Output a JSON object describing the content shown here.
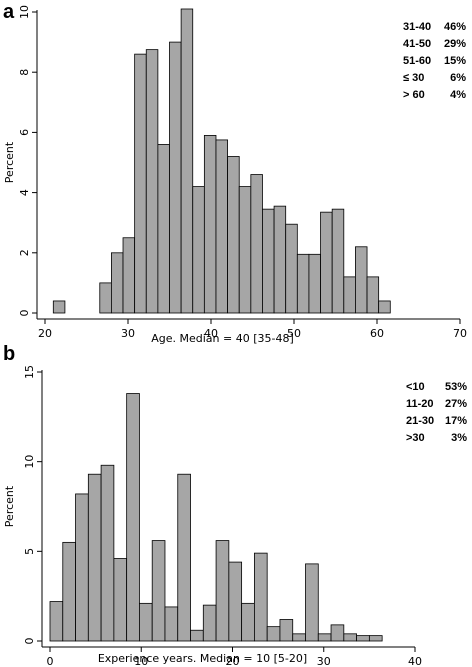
{
  "chart_data": [
    {
      "panel": "a",
      "type": "bar",
      "xlabel": "Age. Median = 40 [35-48]",
      "ylabel": "Percent",
      "xlim": [
        20,
        70
      ],
      "ylim": [
        0,
        10
      ],
      "xticks": [
        20,
        30,
        40,
        50,
        60,
        70
      ],
      "yticks": [
        0,
        2,
        4,
        6,
        8,
        10
      ],
      "bin_width": 1.4,
      "bins": [
        {
          "x": 21.0,
          "y": 0.4
        },
        {
          "x": 26.6,
          "y": 1.0
        },
        {
          "x": 28.0,
          "y": 2.0
        },
        {
          "x": 29.4,
          "y": 2.5
        },
        {
          "x": 30.8,
          "y": 8.6
        },
        {
          "x": 32.2,
          "y": 8.75
        },
        {
          "x": 33.6,
          "y": 5.6
        },
        {
          "x": 35.0,
          "y": 9.0
        },
        {
          "x": 36.4,
          "y": 10.1
        },
        {
          "x": 37.8,
          "y": 4.2
        },
        {
          "x": 39.2,
          "y": 5.9
        },
        {
          "x": 40.6,
          "y": 5.75
        },
        {
          "x": 42.0,
          "y": 5.2
        },
        {
          "x": 43.4,
          "y": 4.2
        },
        {
          "x": 44.8,
          "y": 4.6
        },
        {
          "x": 46.2,
          "y": 3.45
        },
        {
          "x": 47.6,
          "y": 3.55
        },
        {
          "x": 49.0,
          "y": 2.95
        },
        {
          "x": 50.4,
          "y": 1.95
        },
        {
          "x": 51.8,
          "y": 1.95
        },
        {
          "x": 53.2,
          "y": 3.35
        },
        {
          "x": 54.6,
          "y": 3.45
        },
        {
          "x": 56.0,
          "y": 1.2
        },
        {
          "x": 57.4,
          "y": 2.2
        },
        {
          "x": 58.8,
          "y": 1.2
        },
        {
          "x": 60.2,
          "y": 0.4
        }
      ],
      "legend": [
        {
          "label": "31-40",
          "value": "46%"
        },
        {
          "label": "41-50",
          "value": "29%"
        },
        {
          "label": "51-60",
          "value": "15%"
        },
        {
          "label": "≤ 30",
          "value": "6%"
        },
        {
          "label": "> 60",
          "value": "4%"
        }
      ],
      "legend_position": "top-right"
    },
    {
      "panel": "b",
      "type": "bar",
      "xlabel": "Experience years. Median = 10 [5-20]",
      "ylabel": "Percent",
      "xlim": [
        0,
        40
      ],
      "ylim": [
        0,
        15
      ],
      "xticks": [
        0,
        10,
        20,
        30,
        40
      ],
      "yticks": [
        0,
        5,
        10,
        15
      ],
      "bin_width": 1.4,
      "bins": [
        {
          "x": 0.0,
          "y": 2.2
        },
        {
          "x": 1.4,
          "y": 5.5
        },
        {
          "x": 2.8,
          "y": 8.2
        },
        {
          "x": 4.2,
          "y": 9.3
        },
        {
          "x": 5.6,
          "y": 9.8
        },
        {
          "x": 7.0,
          "y": 4.6
        },
        {
          "x": 8.4,
          "y": 13.8
        },
        {
          "x": 9.8,
          "y": 2.1
        },
        {
          "x": 11.2,
          "y": 5.6
        },
        {
          "x": 12.6,
          "y": 1.9
        },
        {
          "x": 14.0,
          "y": 9.3
        },
        {
          "x": 15.4,
          "y": 0.6
        },
        {
          "x": 16.8,
          "y": 2.0
        },
        {
          "x": 18.2,
          "y": 5.6
        },
        {
          "x": 19.6,
          "y": 4.4
        },
        {
          "x": 21.0,
          "y": 2.1
        },
        {
          "x": 22.4,
          "y": 4.9
        },
        {
          "x": 23.8,
          "y": 0.8
        },
        {
          "x": 25.2,
          "y": 1.2
        },
        {
          "x": 26.6,
          "y": 0.4
        },
        {
          "x": 28.0,
          "y": 4.3
        },
        {
          "x": 29.4,
          "y": 0.4
        },
        {
          "x": 30.8,
          "y": 0.9
        },
        {
          "x": 32.2,
          "y": 0.4
        },
        {
          "x": 33.6,
          "y": 0.3
        },
        {
          "x": 35.0,
          "y": 0.3
        }
      ],
      "legend": [
        {
          "label": "<10",
          "value": "53%"
        },
        {
          "label": "11-20",
          "value": "27%"
        },
        {
          "label": "21-30",
          "value": "17%"
        },
        {
          "label": ">30",
          "value": "3%"
        }
      ],
      "legend_position": "top-right"
    }
  ]
}
